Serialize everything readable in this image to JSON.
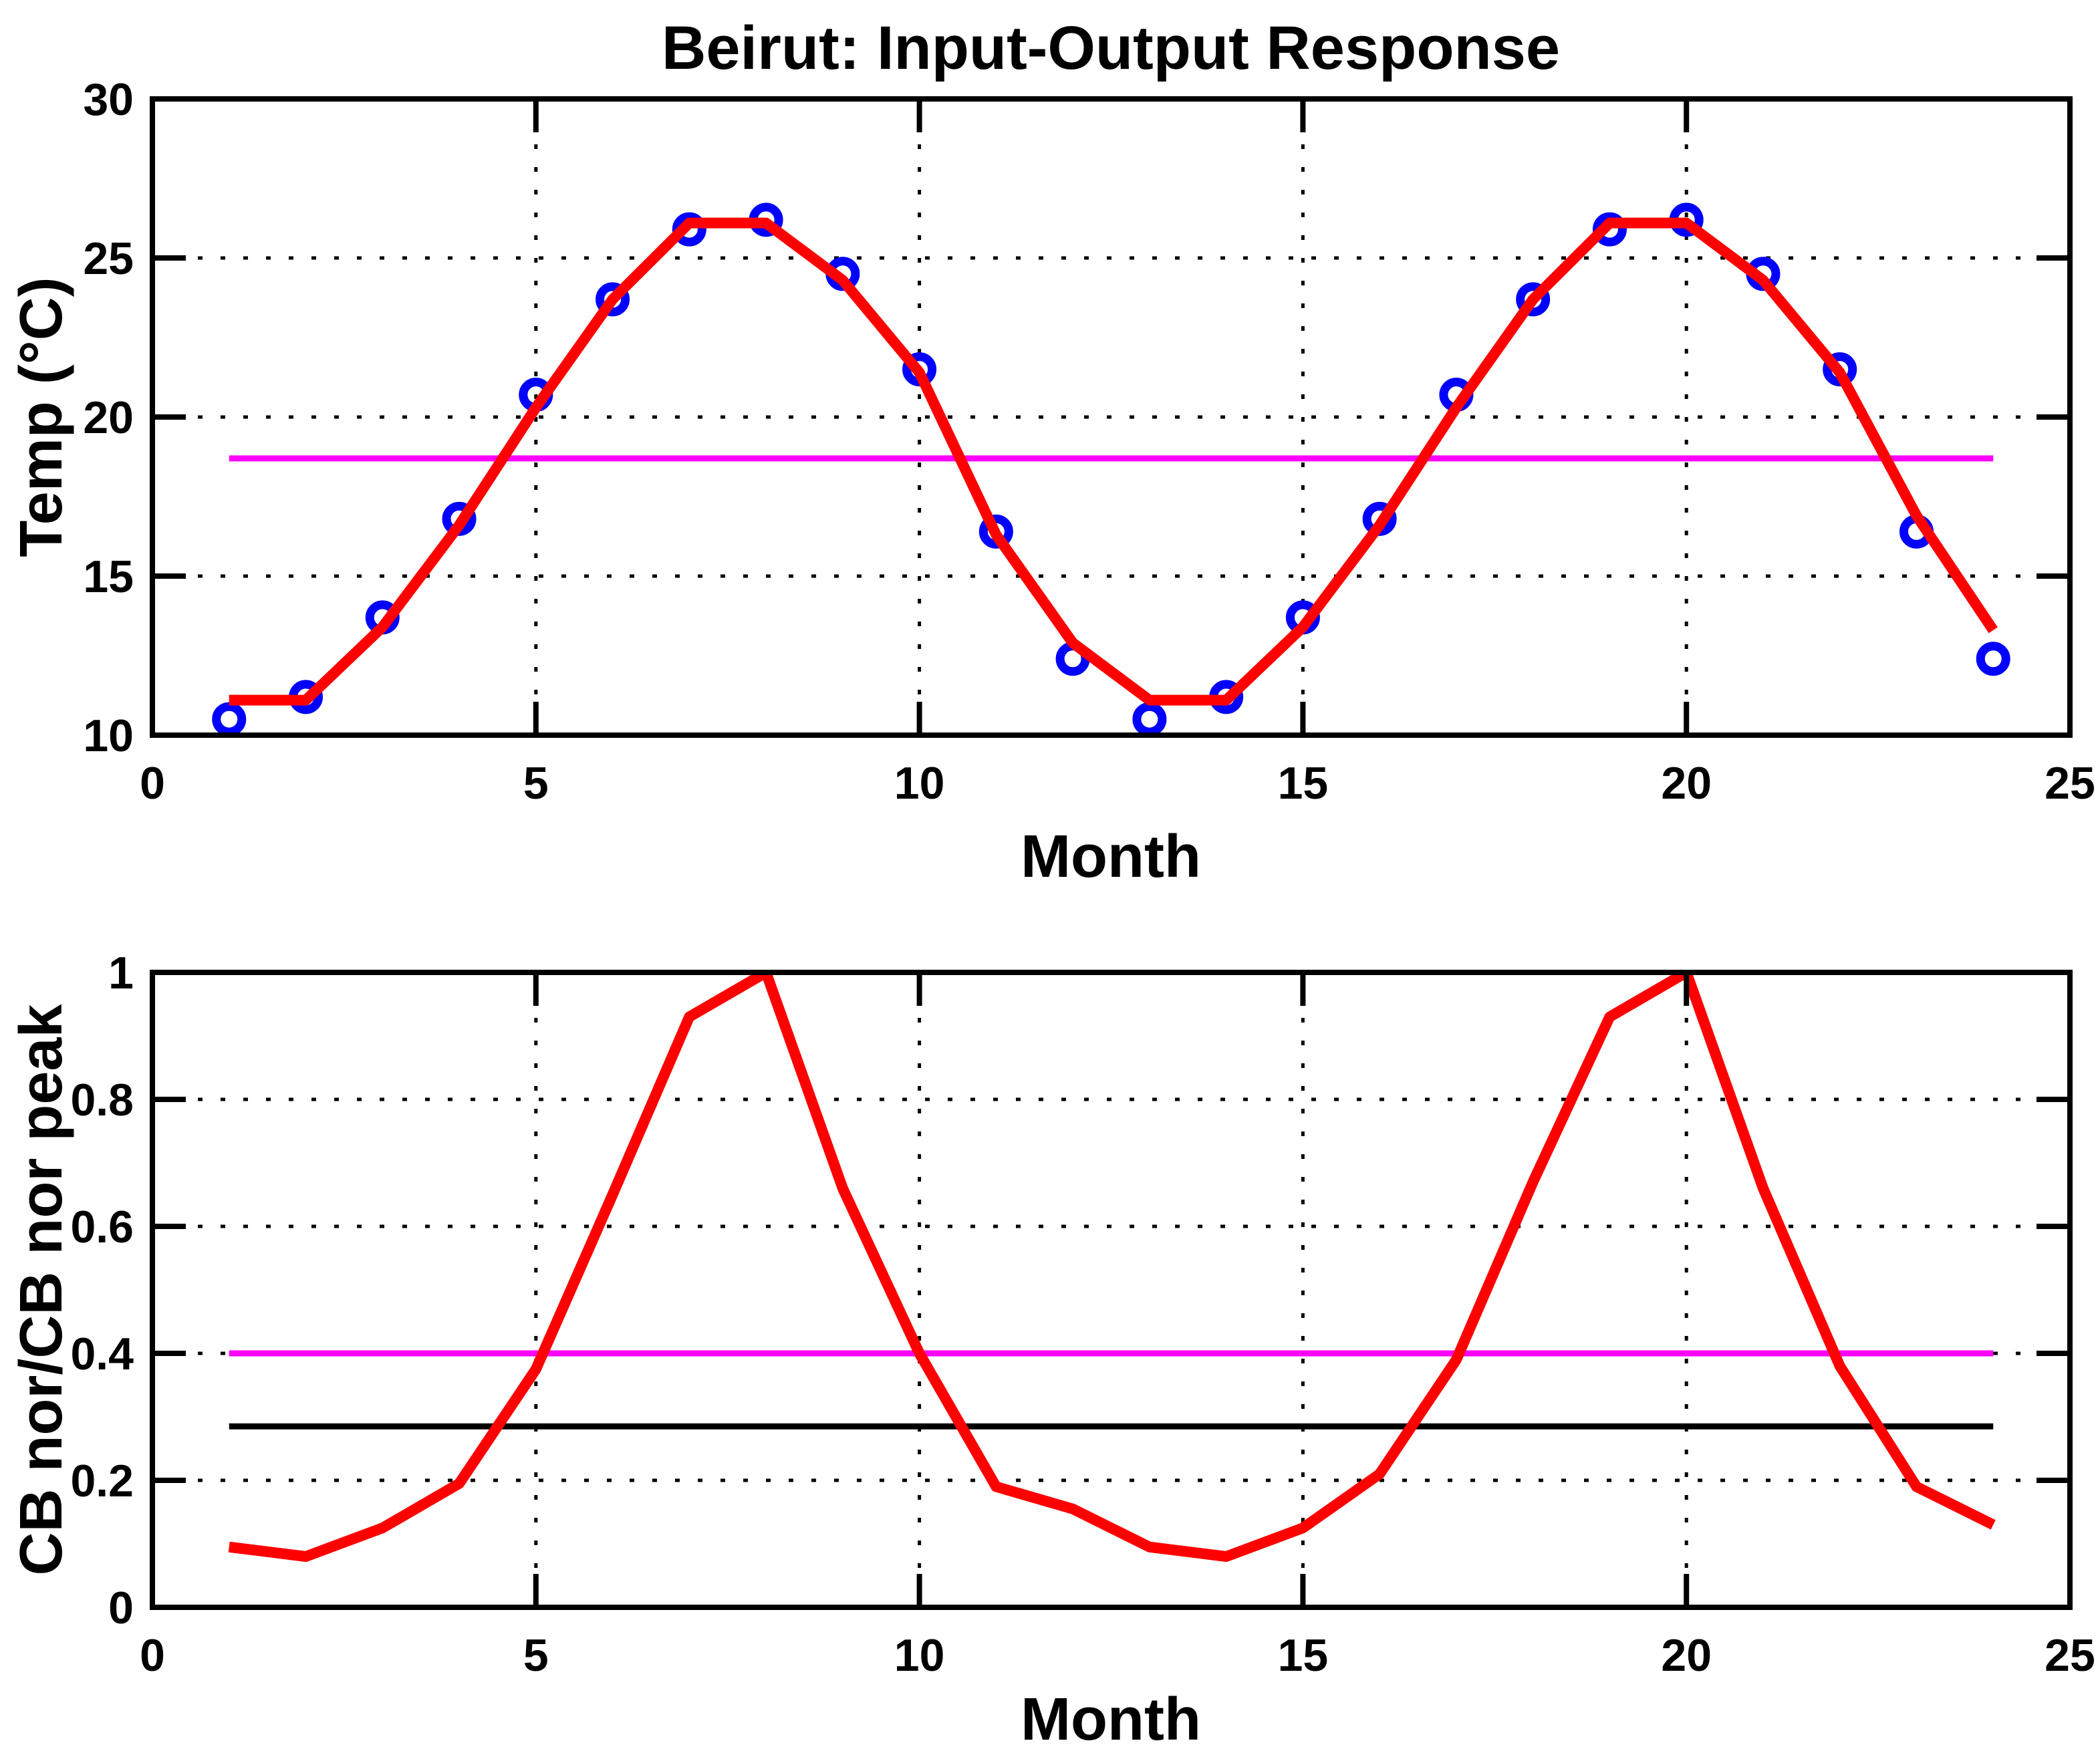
{
  "figure": {
    "background": "#ffffff",
    "axis_color": "#000000",
    "grid_color": "#000000"
  },
  "chart_data": [
    {
      "type": "line",
      "title": "Beirut: Input-Output Response",
      "xlabel": "Month",
      "ylabel": "Temp (°C)",
      "xlim": [
        0,
        25
      ],
      "ylim": [
        10,
        30
      ],
      "xticks": [
        0,
        5,
        10,
        15,
        20,
        25
      ],
      "yticks": [
        10,
        15,
        20,
        25,
        30
      ],
      "grid": true,
      "legend": "none",
      "series": [
        {
          "name": "observed-temp-points",
          "kind": "scatter",
          "color": "#0000ff",
          "marker": "circle",
          "marker_radius": 19,
          "marker_stroke": 13,
          "x": [
            1,
            2,
            3,
            4,
            5,
            6,
            7,
            8,
            9,
            10,
            11,
            12,
            13,
            14,
            15,
            16,
            17,
            18,
            19,
            20,
            21,
            22,
            23,
            24
          ],
          "y": [
            10.5,
            11.2,
            13.7,
            16.8,
            20.7,
            23.7,
            25.9,
            26.2,
            24.5,
            21.5,
            16.4,
            12.4,
            10.5,
            11.2,
            13.7,
            16.8,
            20.7,
            23.7,
            25.9,
            26.2,
            24.5,
            21.5,
            16.4,
            12.4
          ]
        },
        {
          "name": "mean-temp-line",
          "kind": "line",
          "color": "#ff00ff",
          "width": 9,
          "x": [
            1,
            24
          ],
          "y": [
            18.7,
            18.7
          ]
        },
        {
          "name": "model-temp-line",
          "kind": "line",
          "color": "#ff0000",
          "width": 16,
          "x": [
            1,
            2,
            3,
            4,
            5,
            6,
            7,
            8,
            9,
            10,
            11,
            12,
            13,
            14,
            15,
            16,
            17,
            18,
            19,
            20,
            21,
            22,
            23,
            24
          ],
          "y": [
            11.1,
            11.1,
            13.4,
            16.6,
            20.3,
            23.7,
            26.1,
            26.1,
            24.3,
            21.4,
            16.3,
            12.9,
            11.1,
            11.1,
            13.4,
            16.6,
            20.3,
            23.7,
            26.1,
            26.1,
            24.3,
            21.4,
            16.9,
            13.3
          ]
        }
      ]
    },
    {
      "type": "line",
      "title": "",
      "xlabel": "Month",
      "ylabel": "CB nor/CB nor peak",
      "xlim": [
        0,
        25
      ],
      "ylim": [
        0,
        1
      ],
      "xticks": [
        0,
        5,
        10,
        15,
        20,
        25
      ],
      "yticks": [
        0,
        0.2,
        0.4,
        0.6,
        0.8,
        1
      ],
      "grid": true,
      "legend": "none",
      "series": [
        {
          "name": "cb-mean-line",
          "kind": "line",
          "color": "#ff00ff",
          "width": 9,
          "x": [
            1,
            24
          ],
          "y": [
            0.4,
            0.4
          ]
        },
        {
          "name": "cb-threshold-line",
          "kind": "line",
          "color": "#000000",
          "width": 9,
          "x": [
            1,
            24
          ],
          "y": [
            0.285,
            0.285
          ]
        },
        {
          "name": "cb-normalized-line",
          "kind": "line",
          "color": "#ff0000",
          "width": 16,
          "x": [
            1,
            2,
            3,
            4,
            5,
            6,
            7,
            8,
            9,
            10,
            11,
            12,
            13,
            14,
            15,
            16,
            17,
            18,
            19,
            20,
            21,
            22,
            23,
            24
          ],
          "y": [
            0.095,
            0.08,
            0.125,
            0.195,
            0.375,
            0.65,
            0.93,
            1.0,
            0.66,
            0.4,
            0.19,
            0.155,
            0.095,
            0.08,
            0.125,
            0.21,
            0.39,
            0.67,
            0.93,
            1.0,
            0.66,
            0.38,
            0.19,
            0.13
          ]
        }
      ]
    }
  ]
}
